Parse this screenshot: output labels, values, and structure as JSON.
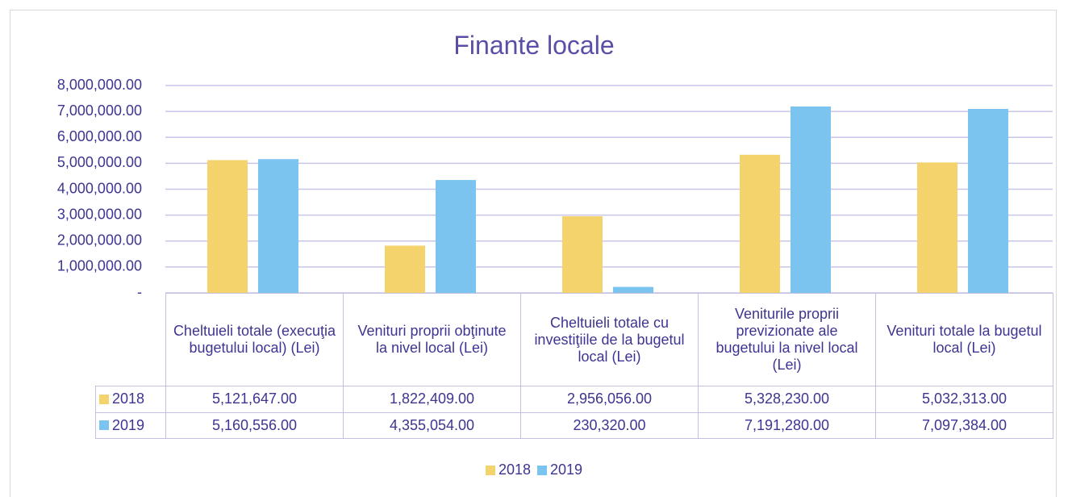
{
  "chart_data": {
    "type": "bar",
    "title": "Finante locale",
    "categories": [
      "Cheltuieli totale (execuţia bugetului local) (Lei)",
      "Venituri proprii obţinute la nivel local (Lei)",
      "Cheltuieli totale cu investiţiile de la bugetul local (Lei)",
      "Veniturile proprii previzionate ale bugetului la nivel local (Lei)",
      "Venituri totale la bugetul local (Lei)"
    ],
    "series": [
      {
        "name": "2018",
        "color": "#f4d26c",
        "values": [
          5121647,
          1822409,
          2956056,
          5328230,
          5032313
        ],
        "value_labels": [
          "5,121,647.00",
          "1,822,409.00",
          "2,956,056.00",
          "5,328,230.00",
          "5,032,313.00"
        ]
      },
      {
        "name": "2019",
        "color": "#7bc4f0",
        "values": [
          5160556,
          4355054,
          230320,
          7191280,
          7097384
        ],
        "value_labels": [
          "5,160,556.00",
          "4,355,054.00",
          "230,320.00",
          "7,191,280.00",
          "7,097,384.00"
        ]
      }
    ],
    "ylim": [
      0,
      8000000
    ],
    "yticks": [
      {
        "value": 0,
        "label": "-"
      },
      {
        "value": 1000000,
        "label": "1,000,000.00"
      },
      {
        "value": 2000000,
        "label": "2,000,000.00"
      },
      {
        "value": 3000000,
        "label": "3,000,000.00"
      },
      {
        "value": 4000000,
        "label": "4,000,000.00"
      },
      {
        "value": 5000000,
        "label": "5,000,000.00"
      },
      {
        "value": 6000000,
        "label": "6,000,000.00"
      },
      {
        "value": 7000000,
        "label": "7,000,000.00"
      },
      {
        "value": 8000000,
        "label": "8,000,000.00"
      }
    ],
    "grid": true,
    "legend": "bottom"
  }
}
